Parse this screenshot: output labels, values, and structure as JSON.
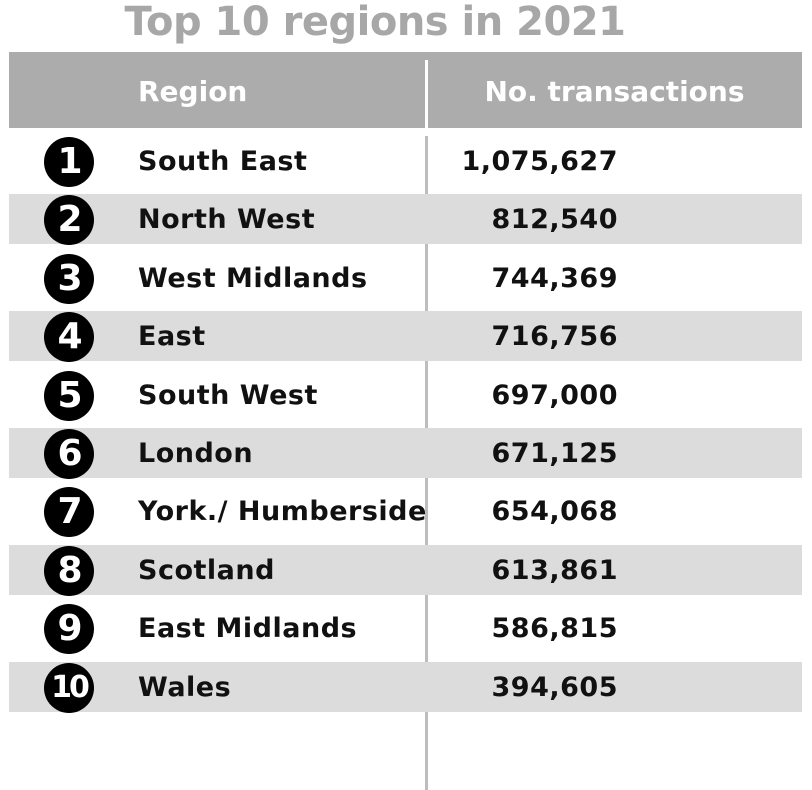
{
  "title": "Top 10 regions in 2021",
  "header": {
    "region_label": "Region",
    "value_label": "No. transactions"
  },
  "chart_data": {
    "type": "table",
    "title": "Top 10 regions in 2021",
    "columns": [
      "",
      "Region",
      "No. transactions"
    ],
    "rows": [
      {
        "rank": "1",
        "region": "South East",
        "transactions": "1,075,627"
      },
      {
        "rank": "2",
        "region": "North West",
        "transactions": "812,540"
      },
      {
        "rank": "3",
        "region": "West Midlands",
        "transactions": "744,369"
      },
      {
        "rank": "4",
        "region": "East",
        "transactions": "716,756"
      },
      {
        "rank": "5",
        "region": "South West",
        "transactions": "697,000"
      },
      {
        "rank": "6",
        "region": "London",
        "transactions": "671,125"
      },
      {
        "rank": "7",
        "region": "York./ Humberside",
        "transactions": "654,068"
      },
      {
        "rank": "8",
        "region": "Scotland",
        "transactions": "613,861"
      },
      {
        "rank": "9",
        "region": "East Midlands",
        "transactions": "586,815"
      },
      {
        "rank": "10",
        "region": "Wales",
        "transactions": "394,605"
      }
    ],
    "colors": {
      "header_bg": "#acacac",
      "shaded_row": "#dcdcdc",
      "title": "#a7a7a7",
      "rank_circle": "#000000"
    }
  }
}
